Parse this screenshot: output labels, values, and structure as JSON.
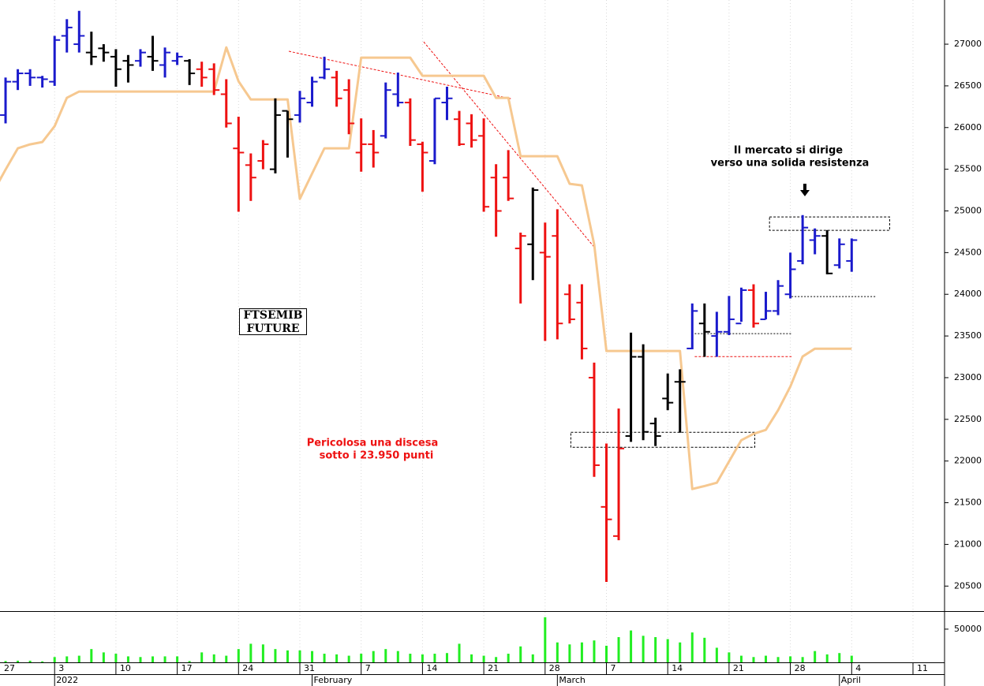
{
  "chart_data": {
    "type": "ohlc",
    "categories": [
      "27",
      null,
      null,
      null,
      null,
      "3",
      null,
      null,
      null,
      null,
      "10",
      null,
      null,
      null,
      null,
      "17",
      null,
      null,
      null,
      null,
      "24",
      null,
      null,
      null,
      null,
      "31",
      null,
      null,
      null,
      null,
      "7",
      null,
      null,
      null,
      null,
      "14",
      null,
      null,
      null,
      null,
      "21",
      null,
      null,
      null,
      null,
      "28",
      null,
      null,
      null,
      null,
      "7",
      null,
      null,
      null,
      null,
      "14",
      null,
      null,
      null,
      null,
      "21",
      null,
      null,
      null,
      null,
      "28",
      null,
      null,
      null,
      null,
      "4",
      null,
      null,
      null,
      null,
      "11"
    ],
    "month_categories": [
      null,
      null,
      null,
      null,
      null,
      "2022",
      null,
      null,
      null,
      null,
      null,
      null,
      null,
      null,
      null,
      null,
      null,
      null,
      null,
      null,
      null,
      null,
      null,
      null,
      null,
      null,
      "February",
      null,
      null,
      null,
      null,
      null,
      null,
      null,
      null,
      null,
      null,
      null,
      null,
      null,
      null,
      null,
      null,
      null,
      null,
      null,
      "March",
      null,
      null,
      null,
      null,
      null,
      null,
      null,
      null,
      null,
      null,
      null,
      null,
      null,
      null,
      null,
      null,
      null,
      null,
      null,
      null,
      null,
      null,
      "April",
      null,
      null,
      null,
      null,
      null,
      null
    ],
    "open": [
      null,
      26150,
      26550,
      26650,
      26600,
      26550,
      27100,
      27000,
      26900,
      26950,
      26850,
      26800,
      26800,
      26850,
      26750,
      26800,
      26800,
      26700,
      26700,
      26400,
      25750,
      25550,
      25600,
      25500,
      26200,
      26150,
      26300,
      26600,
      26600,
      26450,
      25700,
      25800,
      25900,
      26400,
      26300,
      25800,
      25600,
      26300,
      26100,
      26050,
      25900,
      25400,
      25400,
      24550,
      24600,
      24500,
      24700,
      24000,
      23900,
      23000,
      21450,
      21100,
      22300,
      23250,
      22450,
      22750,
      22950,
      23350,
      23650,
      23500,
      23550,
      23650,
      24050,
      23700,
      23800,
      24000,
      24400,
      24650,
      24700,
      24350,
      24400,
      null,
      null,
      null,
      null,
      null
    ],
    "high": [
      null,
      26600,
      26700,
      26700,
      26620,
      27100,
      27300,
      27400,
      27150,
      27000,
      26940,
      26870,
      26940,
      27100,
      26960,
      26900,
      26820,
      26790,
      26770,
      26580,
      26130,
      25690,
      25850,
      26350,
      26200,
      26440,
      26610,
      26850,
      26680,
      26580,
      26110,
      25970,
      26540,
      26660,
      26350,
      25830,
      26350,
      26490,
      26200,
      26160,
      26110,
      25560,
      25730,
      24740,
      25280,
      24860,
      25020,
      24120,
      24120,
      23180,
      22210,
      22630,
      23540,
      23400,
      22520,
      23050,
      23100,
      23890,
      23890,
      23790,
      23980,
      24080,
      24120,
      24030,
      24170,
      24500,
      24950,
      24790,
      24770,
      24670,
      24670,
      null,
      null,
      null,
      null,
      null
    ],
    "low": [
      null,
      26050,
      26450,
      26500,
      26480,
      26500,
      26900,
      26900,
      26750,
      26790,
      26490,
      26540,
      26730,
      26680,
      26600,
      26750,
      26510,
      26490,
      26390,
      26000,
      24990,
      25120,
      25500,
      25450,
      25640,
      26060,
      26250,
      26580,
      26250,
      25920,
      25470,
      25520,
      25870,
      26250,
      25780,
      25230,
      25560,
      26090,
      25780,
      25760,
      24990,
      24690,
      25120,
      23890,
      24170,
      23440,
      23460,
      23650,
      23220,
      21810,
      20550,
      21050,
      22230,
      22250,
      22180,
      22610,
      22340,
      23340,
      23250,
      23250,
      23510,
      23670,
      23600,
      23700,
      23750,
      23950,
      24360,
      24480,
      24240,
      24310,
      24270,
      null,
      null,
      null,
      null,
      null
    ],
    "close": [
      null,
      26550,
      26650,
      26600,
      26580,
      27050,
      27200,
      27100,
      26850,
      26900,
      26700,
      26750,
      26900,
      26800,
      26900,
      26850,
      26650,
      26600,
      26450,
      26050,
      25700,
      25400,
      25800,
      26150,
      26100,
      26350,
      26550,
      26700,
      26350,
      26050,
      25800,
      25700,
      26450,
      26300,
      25850,
      25700,
      26350,
      26350,
      25800,
      25850,
      25050,
      25000,
      25150,
      24700,
      25250,
      24450,
      23650,
      23700,
      23350,
      21950,
      21300,
      22150,
      23250,
      22350,
      22300,
      22700,
      22950,
      23800,
      23550,
      23550,
      23700,
      24050,
      23650,
      23800,
      24100,
      24300,
      24800,
      24700,
      24250,
      24600,
      24650,
      null,
      null,
      null,
      null,
      null
    ],
    "bar_colors": [
      null,
      "#1a1acc",
      "#1a1acc",
      "#1a1acc",
      "#1a1acc",
      "#1a1acc",
      "#1a1acc",
      "#1a1acc",
      "#000000",
      "#000000",
      "#000000",
      "#000000",
      "#1a1acc",
      "#000000",
      "#1a1acc",
      "#1a1acc",
      "#000000",
      "#ee1111",
      "#ee1111",
      "#ee1111",
      "#ee1111",
      "#ee1111",
      "#ee1111",
      "#000000",
      "#000000",
      "#1a1acc",
      "#1a1acc",
      "#1a1acc",
      "#ee1111",
      "#ee1111",
      "#ee1111",
      "#ee1111",
      "#1a1acc",
      "#1a1acc",
      "#ee1111",
      "#ee1111",
      "#1a1acc",
      "#1a1acc",
      "#ee1111",
      "#ee1111",
      "#ee1111",
      "#ee1111",
      "#ee1111",
      "#ee1111",
      "#000000",
      "#ee1111",
      "#ee1111",
      "#ee1111",
      "#ee1111",
      "#ee1111",
      "#ee1111",
      "#ee1111",
      "#000000",
      "#000000",
      "#000000",
      "#000000",
      "#000000",
      "#1a1acc",
      "#000000",
      "#1a1acc",
      "#1a1acc",
      "#1a1acc",
      "#ee1111",
      "#1a1acc",
      "#1a1acc",
      "#1a1acc",
      "#1a1acc",
      "#1a1acc",
      "#000000",
      "#1a1acc",
      "#1a1acc",
      null,
      null,
      null,
      null,
      null
    ],
    "indicator": {
      "color": "#f6c890",
      "values": [
        25230,
        25495,
        25751,
        25798,
        25827,
        26016,
        26356,
        26432,
        26432,
        26432,
        26432,
        26432,
        26432,
        26432,
        26432,
        26432,
        26432,
        26432,
        26432,
        26962,
        26555,
        26337,
        26337,
        26337,
        26337,
        25145,
        25448,
        25751,
        25751,
        25751,
        26839,
        26839,
        26839,
        26839,
        26839,
        26621,
        26621,
        26621,
        26621,
        26621,
        26621,
        26356,
        26356,
        25656,
        25656,
        25656,
        25656,
        25325,
        25306,
        24597,
        23320,
        23320,
        23320,
        23320,
        23320,
        23320,
        23320,
        21664,
        21700,
        21740,
        21995,
        22250,
        22326,
        22373,
        22610,
        22894,
        23253,
        23348,
        23348,
        23348,
        23348,
        null,
        null,
        null,
        null,
        null
      ]
    },
    "volume": {
      "color": "#22ee22",
      "ylim": [
        0,
        76000
      ],
      "yticks": [
        50000
      ],
      "values": [
        null,
        2000,
        2500,
        2500,
        1500,
        8000,
        9000,
        10000,
        20000,
        15000,
        13000,
        9000,
        8000,
        9000,
        9000,
        9000,
        2000,
        15000,
        12000,
        10000,
        20000,
        28000,
        27000,
        20000,
        18000,
        18000,
        17000,
        13000,
        12000,
        10000,
        13000,
        17000,
        20000,
        17000,
        13000,
        12000,
        13000,
        14000,
        28000,
        12000,
        10000,
        8000,
        13000,
        24000,
        12000,
        68000,
        30000,
        27000,
        30000,
        33000,
        25000,
        38000,
        48000,
        40000,
        38000,
        35000,
        30000,
        45000,
        37000,
        22000,
        15000,
        10000,
        8000,
        10000,
        8000,
        9000,
        8000,
        17000,
        12000,
        14000,
        10000,
        null,
        null,
        null,
        null,
        null
      ]
    },
    "ylim": [
      20200,
      27530
    ],
    "yticks": [
      20500,
      21000,
      21500,
      22000,
      22500,
      23000,
      23500,
      24000,
      24500,
      25000,
      25500,
      26000,
      26500,
      27000
    ],
    "grid": true,
    "trendlines": [
      {
        "color": "#ee1111",
        "x": [
          24.1,
          42.2
        ],
        "y": [
          26915,
          26347
        ]
      },
      {
        "color": "#ee1111",
        "x": [
          35.1,
          49.1
        ],
        "y": [
          27028,
          24549
        ]
      },
      {
        "color": "#ee1111",
        "x": [
          57.2,
          65.1
        ],
        "y": [
          23253,
          23253
        ]
      },
      {
        "color": "#000000",
        "x": [
          57.2,
          65.1
        ],
        "y": [
          23528,
          23528
        ]
      },
      {
        "color": "#000000",
        "x": [
          65.1,
          72
        ],
        "y": [
          23972,
          23972
        ]
      }
    ],
    "boxes": [
      {
        "x": [
          47.1,
          62.1
        ],
        "y": [
          22165,
          22345
        ]
      },
      {
        "x": [
          63.3,
          73.1
        ],
        "y": [
          24767,
          24928
        ]
      }
    ],
    "annotations": [
      "FTSEMIB",
      "FUTURE",
      "Pericolosa una discesa",
      "sotto i 23.950 punti",
      "Il mercato si dirige",
      "verso una solida resistenza"
    ]
  }
}
